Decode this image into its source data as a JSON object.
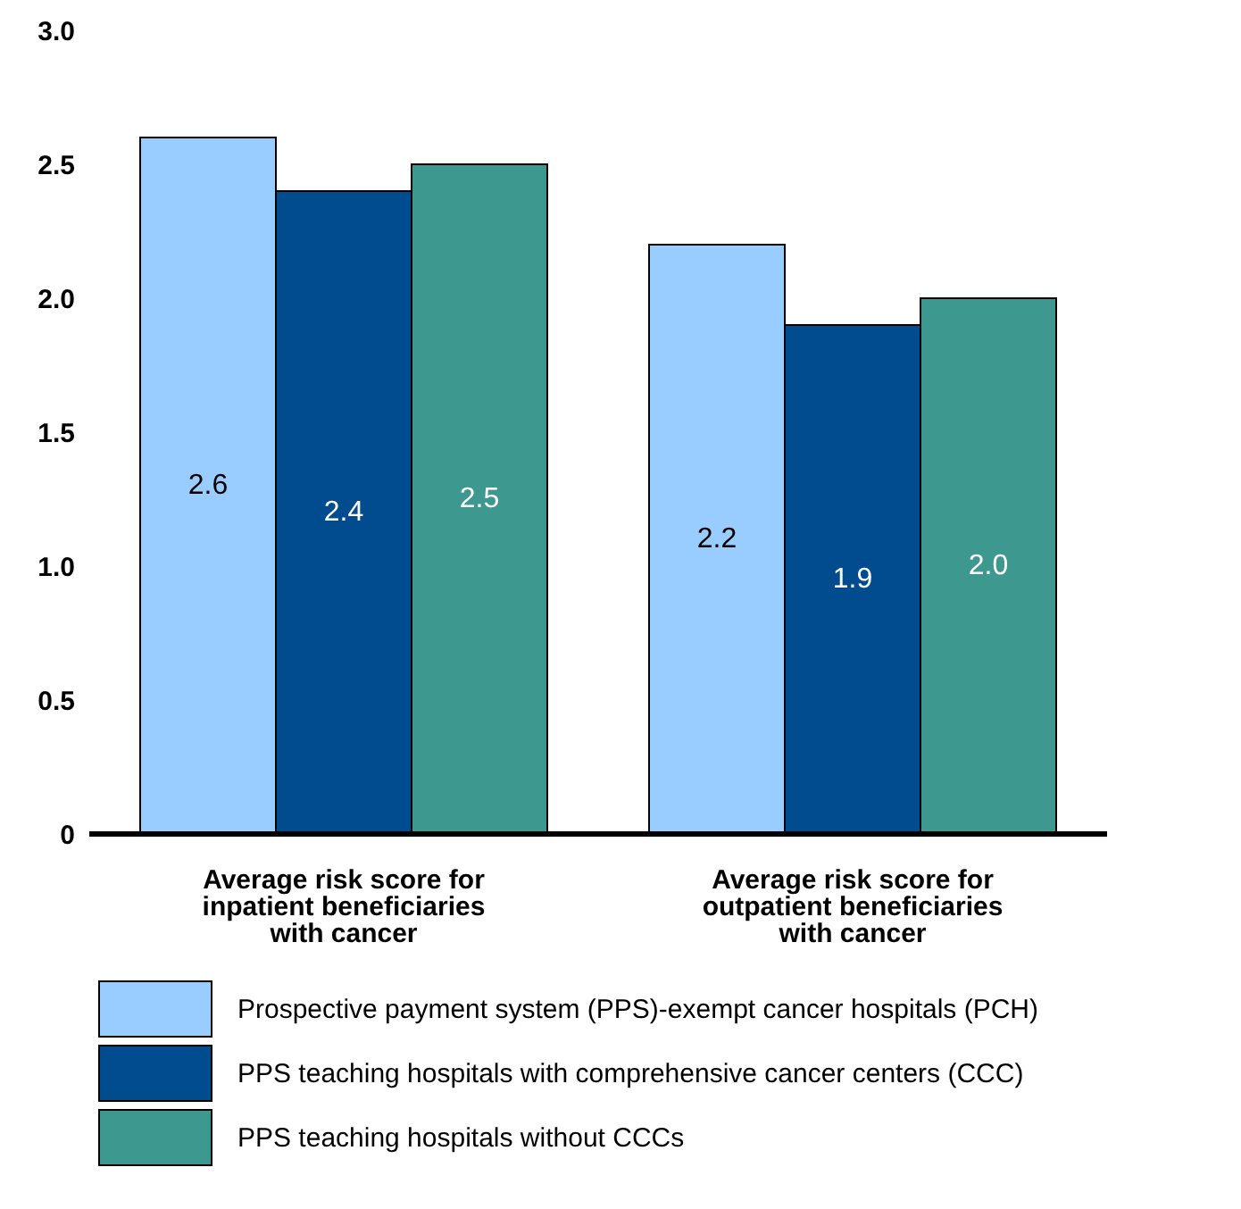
{
  "chart_data": {
    "type": "bar",
    "categories": [
      "Average risk score for inpatient beneficiaries with cancer",
      "Average risk score for outpatient beneficiaries with cancer"
    ],
    "series": [
      {
        "name": "Prospective payment system (PPS)-exempt cancer hospitals (PCH)",
        "color": "#99ccff",
        "values": [
          2.6,
          2.2
        ],
        "value_labels": [
          "2.6",
          "2.2"
        ]
      },
      {
        "name": "PPS teaching hospitals with comprehensive cancer centers (CCC)",
        "color": "#004c8f",
        "values": [
          2.4,
          1.9
        ],
        "value_labels": [
          "2.4",
          "1.9"
        ]
      },
      {
        "name": "PPS teaching hospitals without CCCs",
        "color": "#3d9990",
        "values": [
          2.5,
          2.0
        ],
        "value_labels": [
          "2.5",
          "2.0"
        ]
      }
    ],
    "ylim": [
      0,
      3
    ],
    "yticks": [
      {
        "value": 0,
        "label": "0"
      },
      {
        "value": 0.5,
        "label": "0.5"
      },
      {
        "value": 1,
        "label": "1.0"
      },
      {
        "value": 1.5,
        "label": "1.5"
      },
      {
        "value": 2,
        "label": "2.0"
      },
      {
        "value": 2.5,
        "label": "2.5"
      },
      {
        "value": 3,
        "label": "3.0"
      }
    ],
    "grid": false,
    "legend": "bottom"
  }
}
